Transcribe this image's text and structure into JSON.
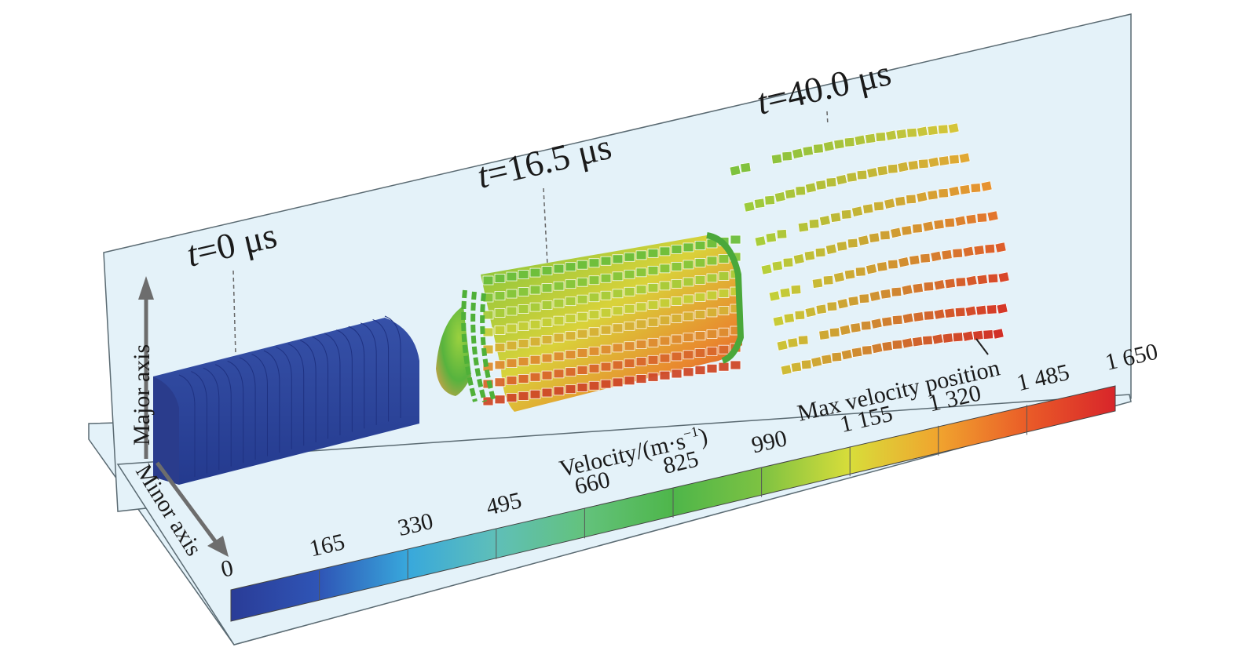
{
  "snapshots": [
    {
      "t_symbol": "t",
      "value_text": "=0 μs"
    },
    {
      "t_symbol": "t",
      "value_text": "=16.5 μs"
    },
    {
      "t_symbol": "t",
      "value_text": "=40.0 μs"
    }
  ],
  "axes": {
    "major": "Major axis",
    "minor": "Minor axis"
  },
  "colorbar": {
    "title": "Velocity/(m·s",
    "title_sup": "−1",
    "title_close": ")",
    "ticks": [
      "0",
      "165",
      "330",
      "495",
      "660",
      "825",
      "990",
      "1 155",
      "1 320",
      "1 485",
      "1 650"
    ],
    "colors": [
      "#2a3c97",
      "#2f55b6",
      "#38a8dc",
      "#5fbfb8",
      "#63c27c",
      "#59b94a",
      "#7dc242",
      "#c9d93c",
      "#e8d631",
      "#ef7b2a",
      "#d8252a"
    ]
  },
  "annotation": "Max velocity position"
}
